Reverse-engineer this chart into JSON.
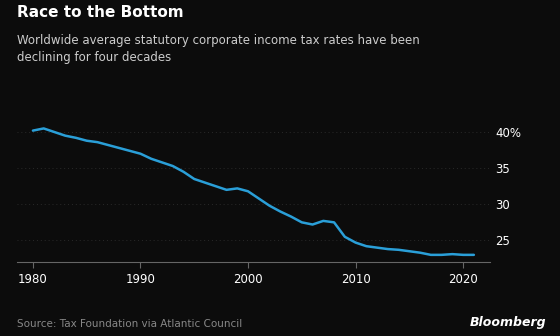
{
  "title": "Race to the Bottom",
  "subtitle": "Worldwide average statutory corporate income tax rates have been\ndeclining for four decades",
  "source": "Source: Tax Foundation via Atlantic Council",
  "watermark": "Bloomberg",
  "background_color": "#0c0c0c",
  "text_color": "#ffffff",
  "subtitle_color": "#cccccc",
  "source_color": "#888888",
  "line_color": "#2a9fd8",
  "grid_color": "#2a2a2a",
  "axis_color": "#666666",
  "years": [
    1980,
    1981,
    1982,
    1983,
    1984,
    1985,
    1986,
    1987,
    1988,
    1989,
    1990,
    1991,
    1992,
    1993,
    1994,
    1995,
    1996,
    1997,
    1998,
    1999,
    2000,
    2001,
    2002,
    2003,
    2004,
    2005,
    2006,
    2007,
    2008,
    2009,
    2010,
    2011,
    2012,
    2013,
    2014,
    2015,
    2016,
    2017,
    2018,
    2019,
    2020,
    2021
  ],
  "values": [
    40.2,
    40.5,
    40.0,
    39.5,
    39.2,
    38.8,
    38.6,
    38.2,
    37.8,
    37.4,
    37.0,
    36.3,
    35.8,
    35.3,
    34.5,
    33.5,
    33.0,
    32.5,
    32.0,
    32.2,
    31.8,
    30.8,
    29.8,
    29.0,
    28.3,
    27.5,
    27.2,
    27.7,
    27.5,
    25.5,
    24.7,
    24.2,
    24.0,
    23.8,
    23.7,
    23.5,
    23.3,
    23.0,
    23.0,
    23.1,
    23.0,
    23.0
  ],
  "ylim": [
    22,
    42
  ],
  "yticks": [
    25,
    30,
    35,
    40
  ],
  "ytick_labels": [
    "25",
    "30",
    "35",
    "40%"
  ],
  "xticks": [
    1980,
    1990,
    2000,
    2010,
    2020
  ],
  "xlim": [
    1978.5,
    2022.5
  ],
  "title_fontsize": 11,
  "subtitle_fontsize": 8.5,
  "tick_fontsize": 8.5,
  "source_fontsize": 7.5,
  "watermark_fontsize": 9
}
